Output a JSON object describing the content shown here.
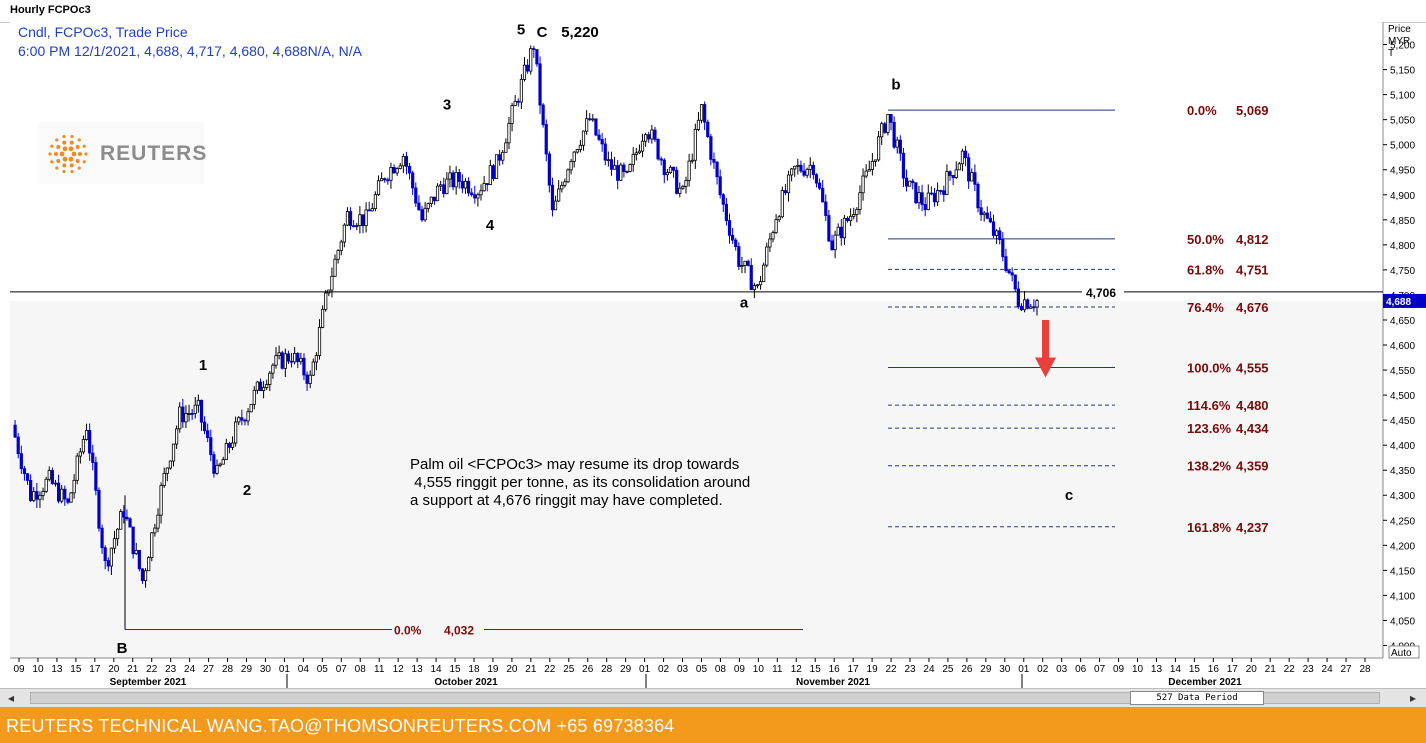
{
  "window": {
    "title": "Hourly FCPOc3"
  },
  "info": {
    "line1": "Cndl, FCPOc3, Trade Price",
    "line2": "6:00 PM 12/1/2021, 4,688, 4,717, 4,680, 4,688N/A, N/A"
  },
  "logo": {
    "text": "REUTERS"
  },
  "annotation": {
    "text": "Palm oil <FCPOc3> may resume its drop towards\n 4,555 ringgit per tonne, as its consolidation around\na support at 4,676 ringgit may have completed."
  },
  "price_axis": {
    "header": [
      "Price",
      "MYR",
      "T"
    ],
    "last_price": "4,688",
    "auto_label": "Auto"
  },
  "scroll": {
    "left_arrow": "◂",
    "right_arrow": "▸",
    "period_label": "527 Data Period"
  },
  "footer": {
    "text": "REUTERS TECHNICAL  WANG.TAO@THOMSONREUTERS.COM  +65 69738364"
  },
  "colors": {
    "up_candle": "#000000",
    "down_candle": "#0000c8",
    "fib_text": "#7a0a0a",
    "fib_line": "#1f3b73",
    "arrow": "#e8413c",
    "footer_bg": "#f39a1d"
  },
  "chart_data": {
    "type": "candlestick",
    "title": "Hourly FCPOc3",
    "ylabel": "MYR",
    "ylim": [
      3975,
      5245
    ],
    "yticks": [
      4000,
      4050,
      4100,
      4150,
      4200,
      4250,
      4300,
      4350,
      4400,
      4450,
      4500,
      4550,
      4600,
      4650,
      4700,
      4750,
      4800,
      4850,
      4900,
      4950,
      5000,
      5050,
      5100,
      5150,
      5200
    ],
    "ytick_labels": [
      "4,000",
      "4,050",
      "4,100",
      "4,150",
      "4,200",
      "4,250",
      "4,300",
      "4,350",
      "4,400",
      "4,450",
      "4,500",
      "4,550",
      "4,600",
      "4,650",
      "4,700",
      "4,750",
      "4,800",
      "4,850",
      "4,900",
      "4,950",
      "5,000",
      "5,050",
      "5,100",
      "5,150",
      "5,200"
    ],
    "date_ticks": [
      "09",
      "10",
      "13",
      "15",
      "17",
      "20",
      "21",
      "22",
      "23",
      "24",
      "27",
      "28",
      "29",
      "30",
      "01",
      "04",
      "05",
      "07",
      "08",
      "11",
      "12",
      "13",
      "14",
      "15",
      "18",
      "19",
      "20",
      "21",
      "22",
      "25",
      "26",
      "28",
      "29",
      "01",
      "02",
      "03",
      "05",
      "08",
      "09",
      "10",
      "11",
      "12",
      "15",
      "16",
      "17",
      "19",
      "22",
      "23",
      "24",
      "25",
      "26",
      "29",
      "30",
      "01",
      "02",
      "03",
      "06",
      "07",
      "09",
      "10",
      "13",
      "14",
      "15",
      "16",
      "17",
      "20",
      "21",
      "22",
      "23",
      "24",
      "27",
      "28"
    ],
    "months": [
      "September 2021",
      "October 2021",
      "November 2021",
      "December 2021"
    ],
    "price_path": [
      {
        "d": "09",
        "p": 4440
      },
      {
        "d": "10",
        "p": 4300
      },
      {
        "d": "13",
        "p": 4330
      },
      {
        "d": "15",
        "p": 4280
      },
      {
        "d": "17",
        "p": 4440
      },
      {
        "d": "17",
        "p": 4160
      },
      {
        "d": "20",
        "p": 4270
      },
      {
        "d": "21",
        "p": 4130
      },
      {
        "d": "22",
        "p": 4310
      },
      {
        "d": "23",
        "p": 4460
      },
      {
        "d": "24",
        "p": 4470
      },
      {
        "d": "27",
        "p": 4340
      },
      {
        "d": "28",
        "p": 4430
      },
      {
        "d": "29",
        "p": 4500
      },
      {
        "d": "30",
        "p": 4560
      },
      {
        "d": "01",
        "p": 4580
      },
      {
        "d": "04",
        "p": 4530
      },
      {
        "d": "05",
        "p": 4720
      },
      {
        "d": "07",
        "p": 4860
      },
      {
        "d": "08",
        "p": 4850
      },
      {
        "d": "11",
        "p": 4940
      },
      {
        "d": "12",
        "p": 4980
      },
      {
        "d": "13",
        "p": 4850
      },
      {
        "d": "14",
        "p": 4920
      },
      {
        "d": "15",
        "p": 4930
      },
      {
        "d": "18",
        "p": 4910
      },
      {
        "d": "19",
        "p": 4960
      },
      {
        "d": "20",
        "p": 5080
      },
      {
        "d": "21",
        "p": 5200
      },
      {
        "d": "22",
        "p": 4860
      },
      {
        "d": "25",
        "p": 4980
      },
      {
        "d": "26",
        "p": 5050
      },
      {
        "d": "28",
        "p": 4960
      },
      {
        "d": "29",
        "p": 4930
      },
      {
        "d": "01",
        "p": 5040
      },
      {
        "d": "02",
        "p": 4960
      },
      {
        "d": "03",
        "p": 4900
      },
      {
        "d": "05",
        "p": 5070
      },
      {
        "d": "08",
        "p": 4900
      },
      {
        "d": "09",
        "p": 4770
      },
      {
        "d": "10",
        "p": 4710
      },
      {
        "d": "11",
        "p": 4860
      },
      {
        "d": "12",
        "p": 4950
      },
      {
        "d": "15",
        "p": 4960
      },
      {
        "d": "16",
        "p": 4800
      },
      {
        "d": "17",
        "p": 4860
      },
      {
        "d": "19",
        "p": 4950
      },
      {
        "d": "22",
        "p": 5060
      },
      {
        "d": "23",
        "p": 4920
      },
      {
        "d": "24",
        "p": 4880
      },
      {
        "d": "25",
        "p": 4920
      },
      {
        "d": "26",
        "p": 4980
      },
      {
        "d": "29",
        "p": 4870
      },
      {
        "d": "30",
        "p": 4800
      },
      {
        "d": "01",
        "p": 4690
      },
      {
        "d": "02",
        "p": 4688
      }
    ],
    "last_close": 4688,
    "horizontal_line": {
      "value": 4706,
      "label": "4,706"
    },
    "fib_levels": [
      {
        "pct": "0.0%",
        "value": 5069,
        "label": "5,069",
        "style": "solid"
      },
      {
        "pct": "50.0%",
        "value": 4812,
        "label": "4,812",
        "style": "solid"
      },
      {
        "pct": "61.8%",
        "value": 4751,
        "label": "4,751",
        "style": "dashed"
      },
      {
        "pct": "76.4%",
        "value": 4676,
        "label": "4,676",
        "style": "dashed"
      },
      {
        "pct": "100.0%",
        "value": 4555,
        "label": "4,555",
        "style": "solid"
      },
      {
        "pct": "114.6%",
        "value": 4480,
        "label": "4,480",
        "style": "dashed"
      },
      {
        "pct": "123.6%",
        "value": 4434,
        "label": "4,434",
        "style": "dashed"
      },
      {
        "pct": "138.2%",
        "value": 4359,
        "label": "4,359",
        "style": "dashed"
      },
      {
        "pct": "161.8%",
        "value": 4237,
        "label": "4,237",
        "style": "dashed"
      }
    ],
    "low_level": {
      "pct": "0.0%",
      "value": 4032,
      "label": "4,032"
    },
    "wave_labels": [
      {
        "text": "1",
        "price": 4560
      },
      {
        "text": "2",
        "price": 4310
      },
      {
        "text": "3",
        "price": 5080
      },
      {
        "text": "4",
        "price": 4840
      },
      {
        "text": "5",
        "price": 5230
      },
      {
        "text": "C",
        "price": 5225
      },
      {
        "text": "5,220",
        "price": 5225
      },
      {
        "text": "B",
        "price": 3995
      },
      {
        "text": "a",
        "price": 4685
      },
      {
        "text": "b",
        "price": 5120
      },
      {
        "text": "c",
        "price": 4300
      }
    ]
  }
}
